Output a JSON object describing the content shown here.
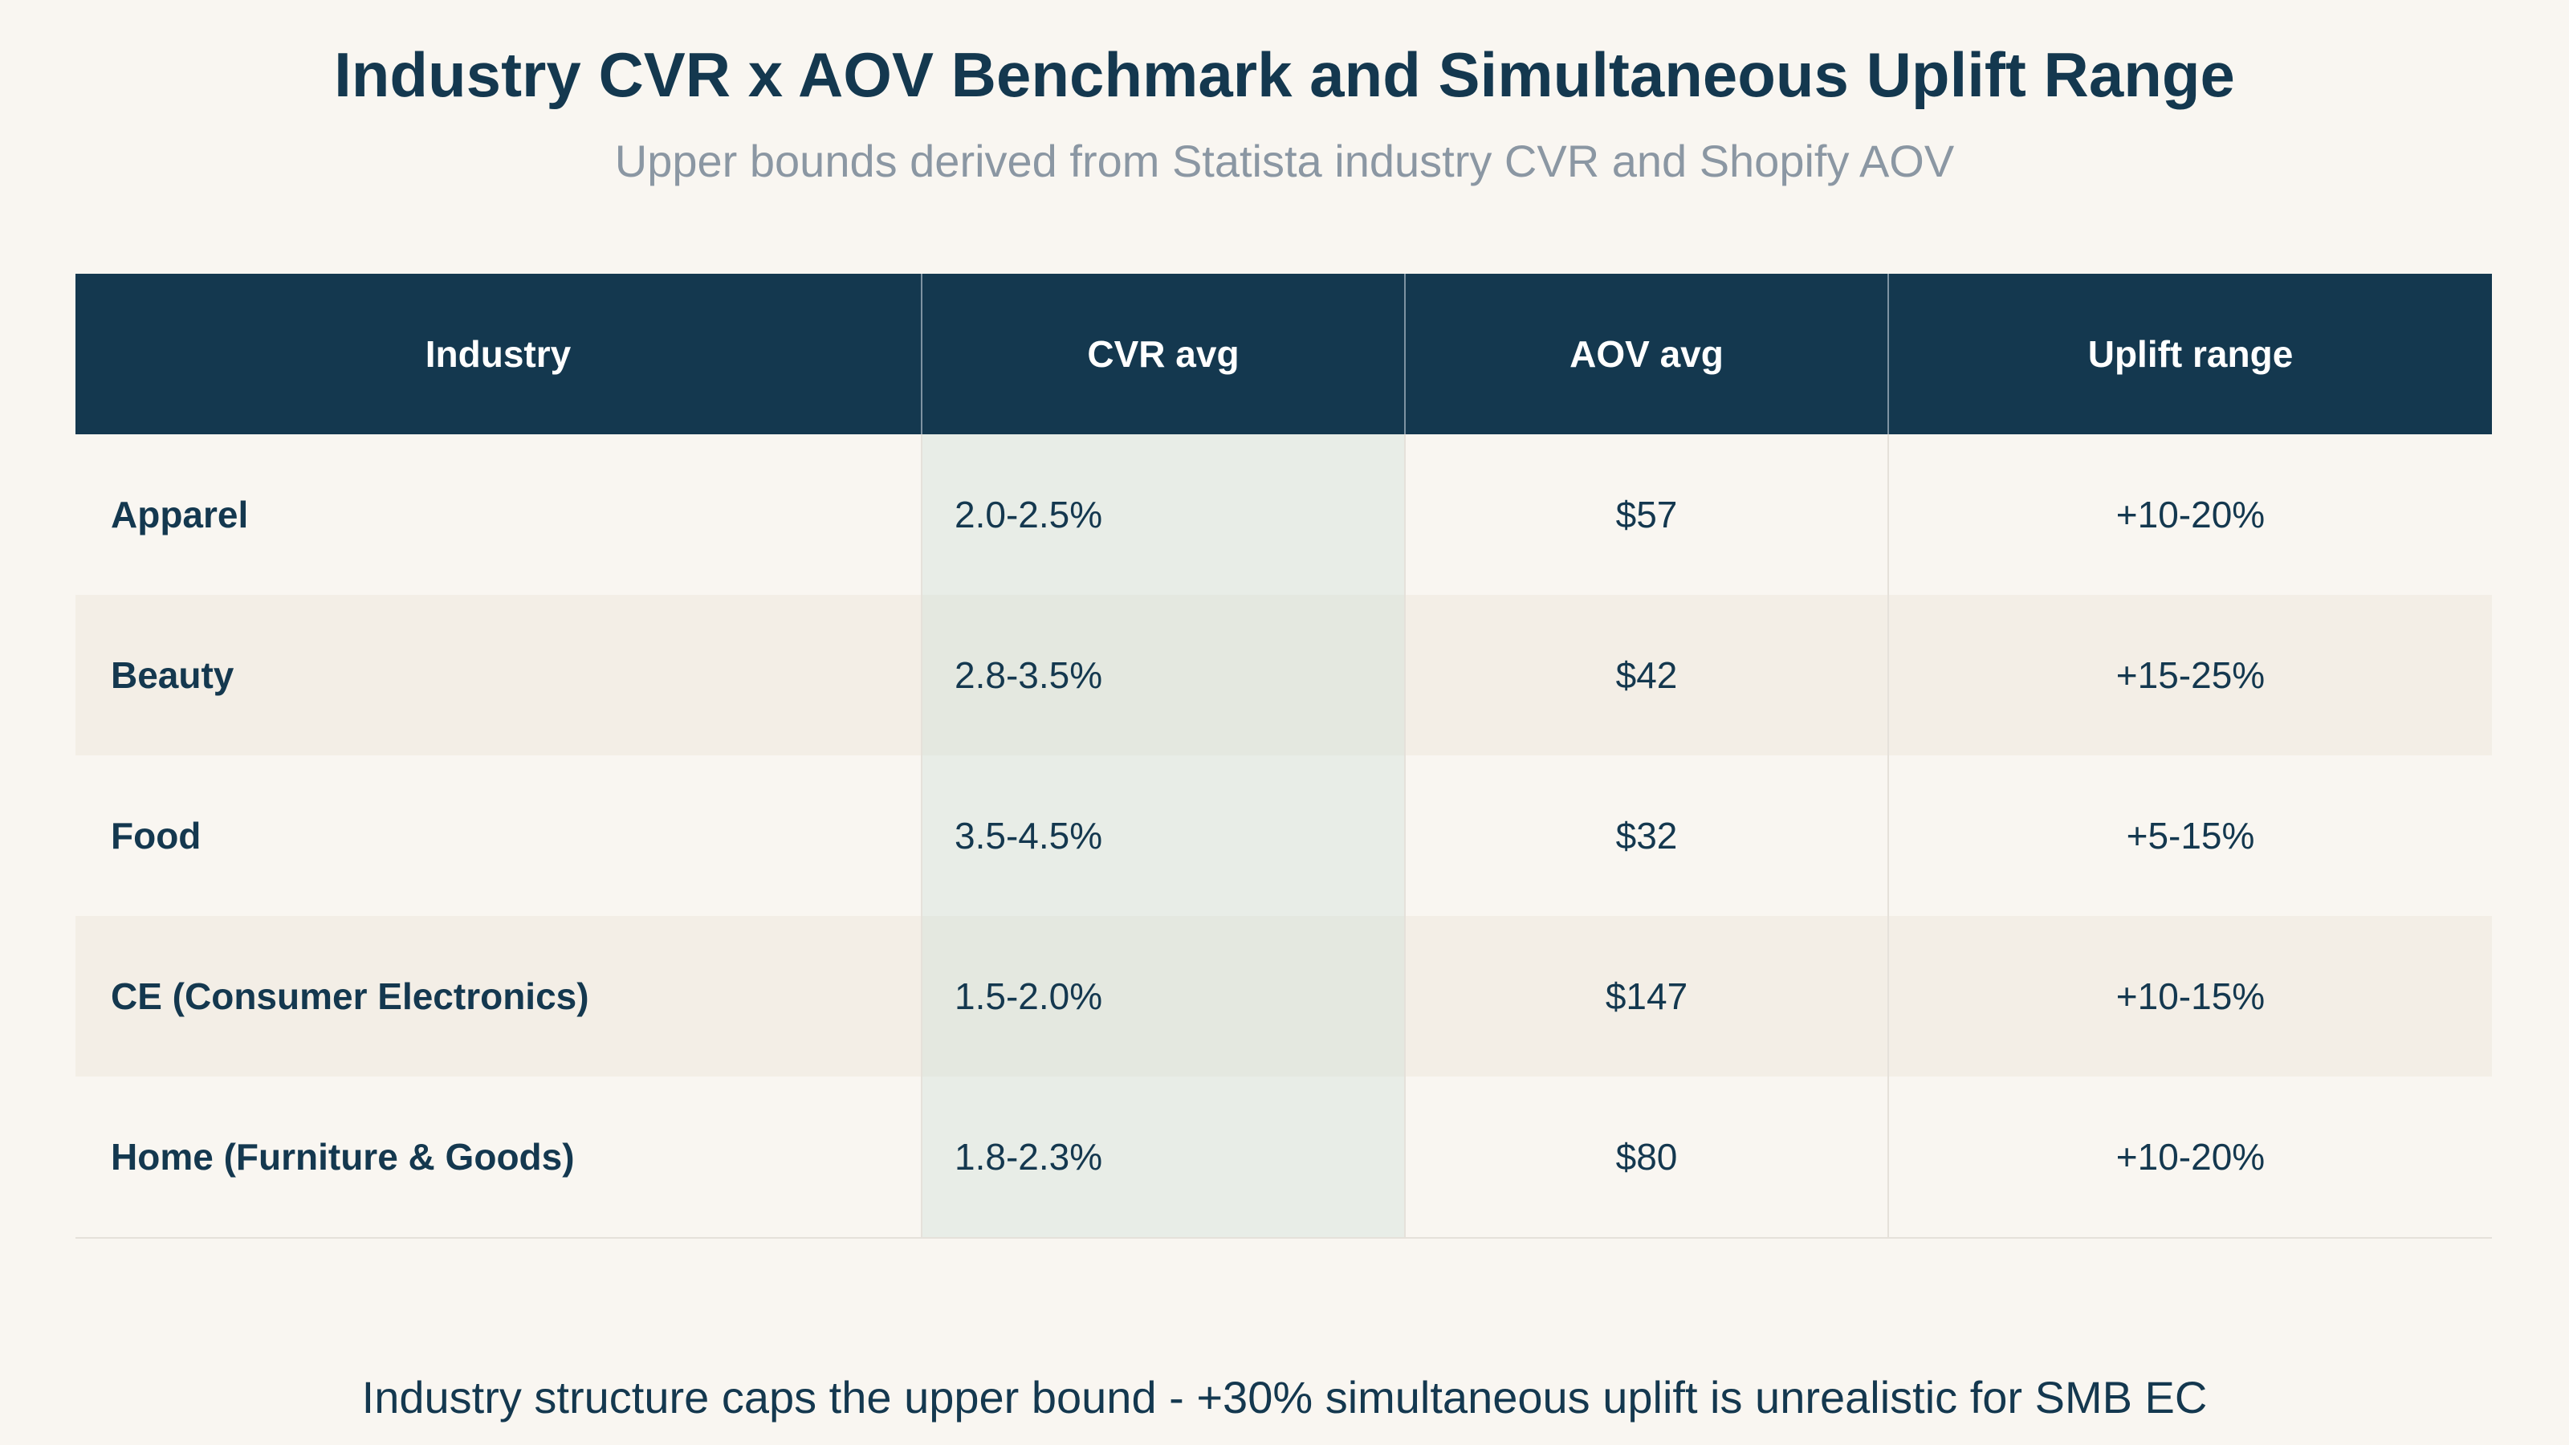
{
  "title": "Industry CVR x AOV Benchmark and Simultaneous Uplift Range",
  "subtitle": "Upper bounds derived from Statista industry CVR and Shopify AOV",
  "footnote": "Industry structure caps the upper bound - +30% simultaneous uplift is unrealistic for SMB EC",
  "colors": {
    "header_bg": "#14384f",
    "header_text": "#ffffff",
    "body_text": "#14384f",
    "subtitle_text": "#8b97a3",
    "page_bg": "#f9f6f1",
    "alt_row_bg": "#f3eee6",
    "cvr_column_tint": "#e8ede8"
  },
  "chart_data": {
    "type": "table",
    "title": "Industry CVR x AOV Benchmark and Simultaneous Uplift Range",
    "subtitle": "Upper bounds derived from Statista industry CVR and Shopify AOV",
    "columns": [
      "Industry",
      "CVR avg",
      "AOV avg",
      "Uplift range"
    ],
    "rows": [
      [
        "Apparel",
        "2.0-2.5%",
        "$57",
        "+10-20%"
      ],
      [
        "Beauty",
        "2.8-3.5%",
        "$42",
        "+15-25%"
      ],
      [
        "Food",
        "3.5-4.5%",
        "$32",
        "+5-15%"
      ],
      [
        "CE (Consumer Electronics)",
        "1.5-2.0%",
        "$147",
        "+10-15%"
      ],
      [
        "Home (Furniture & Goods)",
        "1.8-2.3%",
        "$80",
        "+10-20%"
      ]
    ]
  }
}
